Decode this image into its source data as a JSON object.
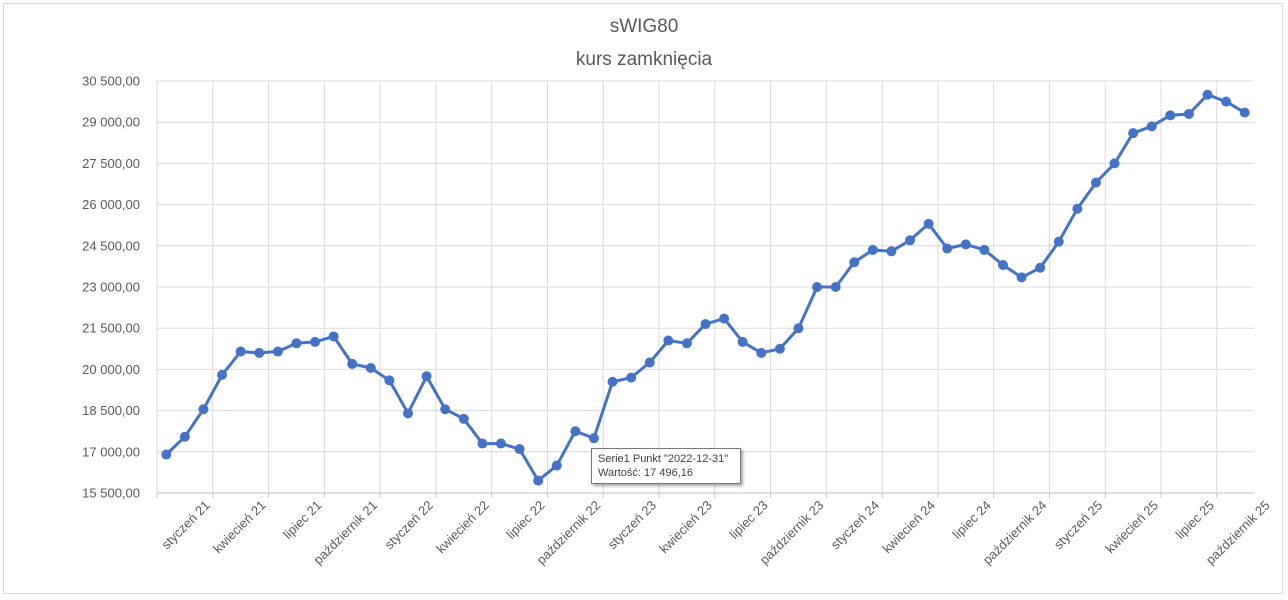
{
  "chart_data": {
    "type": "line",
    "title": "sWIG80",
    "subtitle": "kurs zamknięcia",
    "xlabel": "",
    "ylabel": "",
    "ylim": [
      15500,
      30500
    ],
    "y_ticks": [
      "30 500,00",
      "29 000,00",
      "27 500,00",
      "26 000,00",
      "24 500,00",
      "23 000,00",
      "21 500,00",
      "20 000,00",
      "18 500,00",
      "17 000,00",
      "15 500,00"
    ],
    "y_tick_values": [
      30500,
      29000,
      27500,
      26000,
      24500,
      23000,
      21500,
      20000,
      18500,
      17000,
      15500
    ],
    "x_tick_labels": [
      "styczeń 21",
      "kwiecień 21",
      "lipiec 21",
      "październik 21",
      "styczeń 22",
      "kwiecień 22",
      "lipiec 22",
      "październik 22",
      "styczeń 23",
      "kwiecień 23",
      "lipiec 23",
      "październik 23",
      "styczeń 24",
      "kwiecień 24",
      "lipiec 24",
      "październik 24",
      "styczeń 25",
      "kwiecień 25",
      "lipiec 25",
      "październik 25"
    ],
    "grid": true,
    "series_color": "#4472c4",
    "series": [
      {
        "values": [
          16900,
          17550,
          18550,
          19800,
          20650,
          20600,
          20650,
          20950,
          21000,
          21200,
          20200,
          20050,
          19600,
          18400,
          19750,
          18550,
          18200,
          17300,
          17300,
          17100,
          15950,
          16500,
          17750,
          17496.16,
          19550,
          19700,
          20250,
          21050,
          20950,
          21650,
          21850,
          21000,
          20600,
          20750,
          21500,
          23000,
          23000,
          23900,
          24350,
          24300,
          24700,
          25300,
          24400,
          24550,
          24350,
          23800,
          23350,
          23700,
          24650,
          25850,
          26800,
          27500,
          28600,
          28850,
          29250,
          29300,
          30000,
          29750,
          29350
        ]
      }
    ],
    "tooltip": {
      "line1": "Serie1 Punkt \"2022-12-31\"",
      "line2": "Wartość:  17 496,16"
    }
  }
}
